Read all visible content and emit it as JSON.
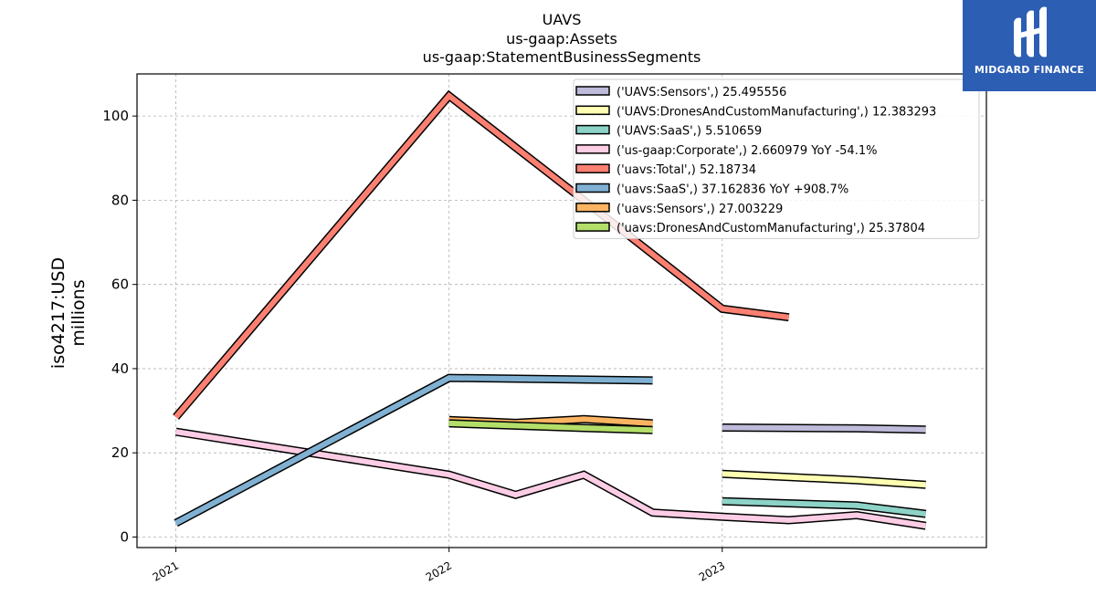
{
  "chart_data": {
    "type": "line",
    "title_lines": [
      "UAVS",
      "us-gaap:Assets",
      "us-gaap:StatementBusinessSegments"
    ],
    "ylabel_lines": [
      "iso4217:USD",
      "millions"
    ],
    "xlabel": "",
    "x_ticks": [
      "2021",
      "2022",
      "2023"
    ],
    "y_ticks": [
      "0",
      "20",
      "40",
      "60",
      "80",
      "100"
    ],
    "ylim": [
      -2.5,
      110
    ],
    "xlim": [
      "2020-11-10",
      "2023-12-20"
    ],
    "grid": true,
    "legend_position": "top-right",
    "series": [
      {
        "name": "('UAVS:Sensors',) 25.495556",
        "legend": "('UAVS:Sensors',) 25.495556",
        "color": "#bebada",
        "points": [
          [
            "2023-01-01",
            26.0
          ],
          [
            "2023-06-30",
            25.8
          ],
          [
            "2023-09-30",
            25.5
          ]
        ]
      },
      {
        "name": "('UAVS:DronesAndCustomManufacturing',) 12.383293",
        "legend": "('UAVS:DronesAndCustomManufacturing',) 12.383293",
        "color": "#ffffb3",
        "points": [
          [
            "2023-01-01",
            15.0
          ],
          [
            "2023-06-30",
            13.5
          ],
          [
            "2023-09-30",
            12.4
          ]
        ]
      },
      {
        "name": "('UAVS:SaaS',) 5.510659",
        "legend": "('UAVS:SaaS',) 5.510659",
        "color": "#8dd3c7",
        "points": [
          [
            "2023-01-01",
            8.5
          ],
          [
            "2023-06-30",
            7.5
          ],
          [
            "2023-09-30",
            5.5
          ]
        ]
      },
      {
        "name": "('us-gaap:Corporate',) 2.660979 YoY -54.1%",
        "legend": "('us-gaap:Corporate',) 2.660979 YoY -54.1%",
        "color": "#fccde5",
        "points": [
          [
            "2021-01-01",
            25.0
          ],
          [
            "2022-01-01",
            14.8
          ],
          [
            "2022-03-31",
            10.0
          ],
          [
            "2022-06-30",
            14.8
          ],
          [
            "2022-09-30",
            5.8
          ],
          [
            "2023-01-01",
            4.8
          ],
          [
            "2023-03-31",
            4.0
          ],
          [
            "2023-06-30",
            5.2
          ],
          [
            "2023-09-30",
            2.66
          ]
        ]
      },
      {
        "name": "('uavs:Total',) 52.18734",
        "legend": "('uavs:Total',) 52.18734",
        "color": "#fb8072",
        "points": [
          [
            "2021-01-01",
            28.5
          ],
          [
            "2022-01-01",
            104.8
          ],
          [
            "2022-06-30",
            80.0
          ],
          [
            "2023-01-01",
            54.2
          ],
          [
            "2023-03-31",
            52.2
          ]
        ]
      },
      {
        "name": "('uavs:SaaS',) 37.162836 YoY +908.7%",
        "legend": "('uavs:SaaS',) 37.162836 YoY +908.7%",
        "color": "#80b1d3",
        "points": [
          [
            "2021-01-01",
            3.3
          ],
          [
            "2022-01-01",
            37.8
          ],
          [
            "2022-09-30",
            37.2
          ]
        ]
      },
      {
        "name": "('uavs:Sensors',) 27.003229",
        "legend": "('uavs:Sensors',) 27.003229",
        "color": "#fdb462",
        "points": [
          [
            "2022-01-01",
            27.8
          ],
          [
            "2022-03-31",
            27.1
          ],
          [
            "2022-06-30",
            28.0
          ],
          [
            "2022-09-30",
            27.0
          ]
        ]
      },
      {
        "name": "('uavs:DronesAndCustomManufacturing',) 25.37804",
        "legend": "('uavs:DronesAndCustomManufacturing',) 25.37804",
        "color": "#b3de69",
        "points": [
          [
            "2022-01-01",
            27.0
          ],
          [
            "2022-06-30",
            25.9
          ],
          [
            "2022-09-30",
            25.4
          ]
        ]
      }
    ]
  },
  "logo": {
    "text": "MIDGARD FINANCE"
  }
}
